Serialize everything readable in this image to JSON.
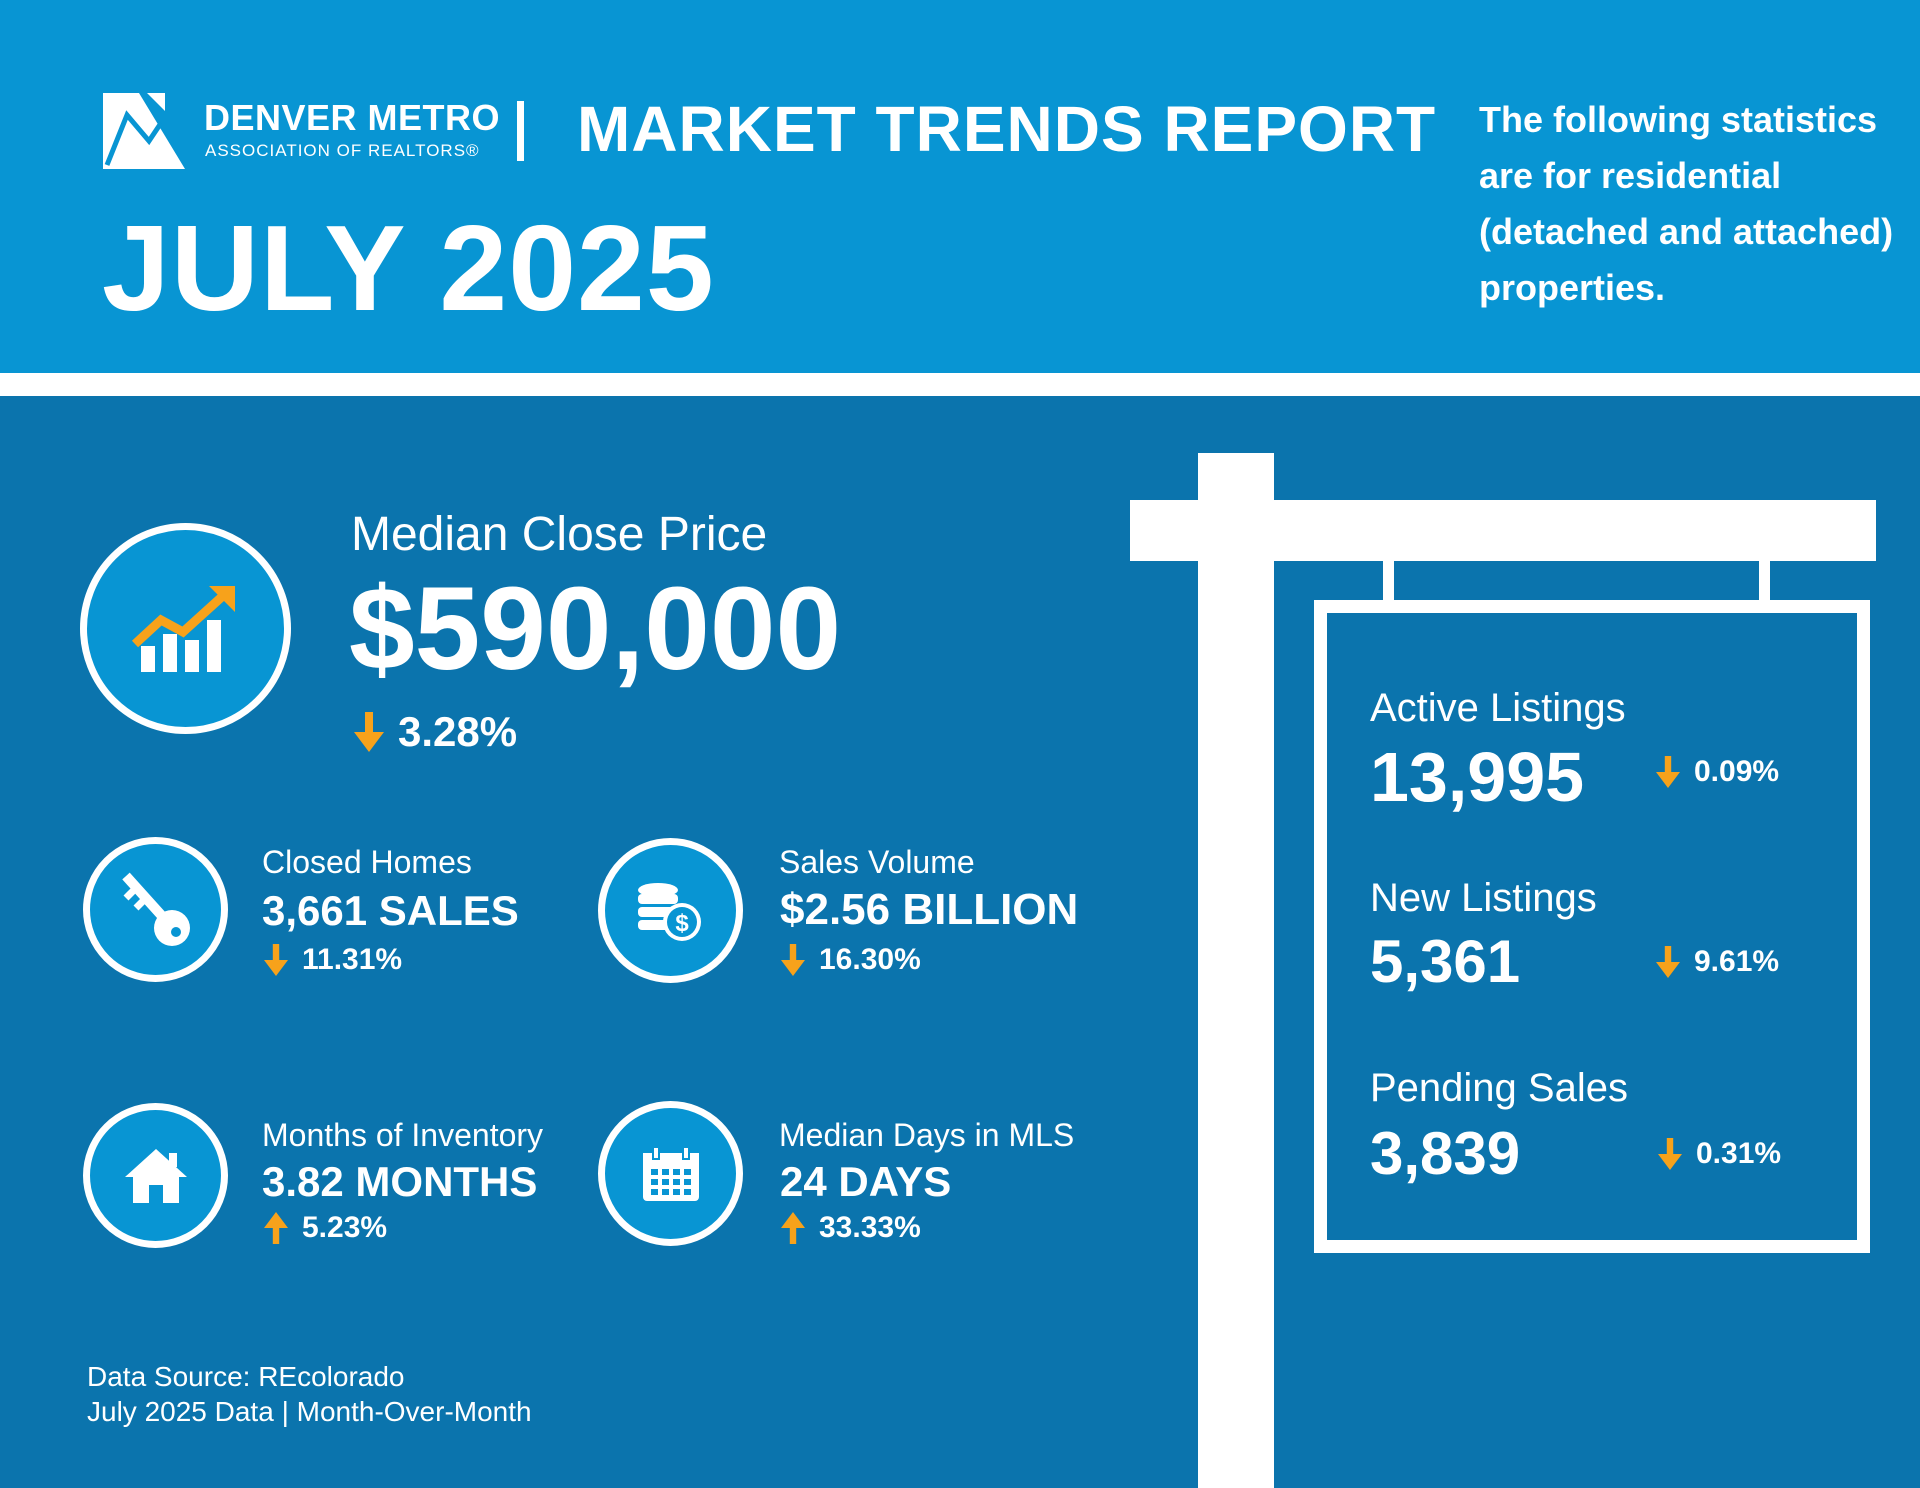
{
  "header": {
    "org_name": "DENVER METRO",
    "org_sub": "ASSOCIATION OF REALTORS®",
    "report_title": "MARKET TRENDS REPORT",
    "period": "JULY 2025",
    "intro": "The following statistics are for residential (detached and attached) properties."
  },
  "colors": {
    "header_bg": "#0895d3",
    "main_bg": "#0b74ad",
    "accent_orange": "#f7a21b",
    "text": "#ffffff"
  },
  "median_close_price": {
    "icon": "rising-chart-icon",
    "label": "Median Close Price",
    "value": "$590,000",
    "change": "3.28%",
    "direction": "down"
  },
  "stats": {
    "closed_homes": {
      "icon": "key-icon",
      "label": "Closed Homes",
      "value": "3,661 SALES",
      "change": "11.31%",
      "direction": "down"
    },
    "sales_volume": {
      "icon": "coins-icon",
      "label": "Sales Volume",
      "value": "$2.56 BILLION",
      "change": "16.30%",
      "direction": "down"
    },
    "months_inventory": {
      "icon": "house-icon",
      "label": "Months of Inventory",
      "value": "3.82 MONTHS",
      "change": "5.23%",
      "direction": "up"
    },
    "days_in_mls": {
      "icon": "calendar-icon",
      "label": "Median Days in MLS",
      "value": "24 DAYS",
      "change": "33.33%",
      "direction": "up"
    }
  },
  "sign": {
    "active_listings": {
      "label": "Active Listings",
      "value": "13,995",
      "change": "0.09%",
      "direction": "down"
    },
    "new_listings": {
      "label": "New Listings",
      "value": "5,361",
      "change": "9.61%",
      "direction": "down"
    },
    "pending_sales": {
      "label": "Pending Sales",
      "value": "3,839",
      "change": "0.31%",
      "direction": "down"
    }
  },
  "footer": {
    "source": "Data Source: REcolorado",
    "period_note": "July 2025 Data | Month-Over-Month"
  }
}
